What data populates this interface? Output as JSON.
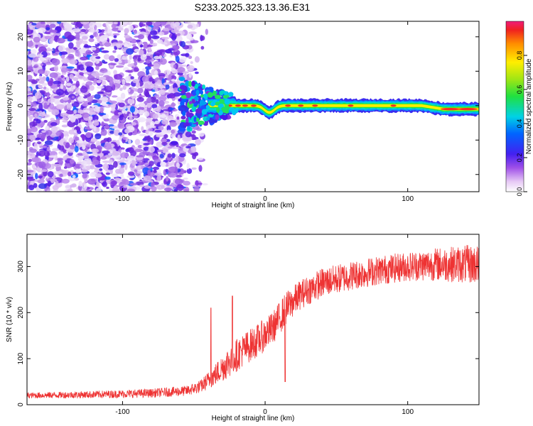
{
  "title": "S233.2025.323.13.36.E31",
  "chart_data": [
    {
      "type": "heatmap",
      "title": "S233.2025.323.13.36.E31",
      "xlabel": "Height of straight line (km)",
      "ylabel": "Frequency (Hz)",
      "xlim": [
        -167,
        150
      ],
      "ylim": [
        -25,
        24.5
      ],
      "xticks": [
        -100,
        0,
        100
      ],
      "yticks": [
        -20,
        -10,
        0,
        10,
        20
      ],
      "colorbar": {
        "label": "Normalized spectral amplitude",
        "range": [
          0,
          1
        ],
        "ticks": [
          0.0,
          0.2,
          0.4,
          0.6,
          0.8
        ],
        "tick_labels": [
          "0.0",
          "0.2",
          "0.4",
          "0.6",
          "0.8"
        ]
      },
      "features": {
        "noise_region_x": [
          -167,
          -50
        ],
        "transition_region_x": [
          -60,
          -25
        ],
        "ridge_center_freq": 0,
        "ridge_dip": {
          "x": 3,
          "freq": -2
        },
        "ridge_end_freq": -1
      }
    },
    {
      "type": "line",
      "xlabel": "Height of straight line (km)",
      "ylabel": "SNR (10 * v/v)",
      "xlim": [
        -167,
        150
      ],
      "ylim": [
        0,
        370
      ],
      "xticks": [
        -100,
        0,
        100
      ],
      "yticks": [
        0,
        100,
        200,
        300
      ],
      "color": "#ee3333",
      "series": [
        {
          "name": "SNR",
          "anchors_x": [
            -167,
            -120,
            -80,
            -55,
            -45,
            -35,
            -25,
            -15,
            -5,
            5,
            15,
            25,
            40,
            60,
            80,
            100,
            120,
            150
          ],
          "anchors_y": [
            20,
            22,
            25,
            30,
            40,
            65,
            95,
            120,
            140,
            165,
            210,
            240,
            265,
            280,
            292,
            300,
            305,
            305
          ],
          "noise_floor": [
            8,
            10,
            12,
            14,
            18,
            30,
            45,
            45,
            45,
            45,
            45,
            40,
            40,
            40,
            40,
            40,
            45,
            55
          ],
          "spikes": [
            {
              "x": -23,
              "y": 236
            },
            {
              "x": -38,
              "y": 210
            },
            {
              "x": 14,
              "y": 50
            }
          ]
        }
      ]
    }
  ]
}
